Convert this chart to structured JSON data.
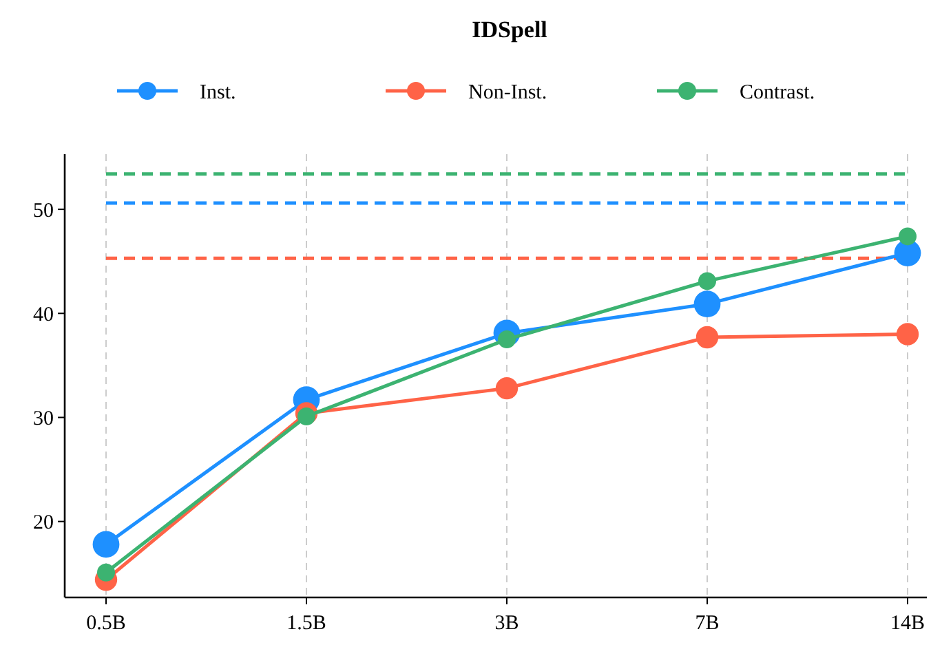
{
  "chart_data": {
    "type": "line",
    "title": "IDSpell",
    "categories": [
      "0.5B",
      "1.5B",
      "3B",
      "7B",
      "14B"
    ],
    "series": [
      {
        "name": "Inst.",
        "color": "#1e90ff",
        "values": [
          17.8,
          31.7,
          38.1,
          40.9,
          45.8
        ]
      },
      {
        "name": "Non-Inst.",
        "color": "#ff6347",
        "values": [
          14.4,
          30.4,
          32.8,
          37.7,
          38.0
        ]
      },
      {
        "name": "Contrast.",
        "color": "#3cb371",
        "values": [
          15.1,
          30.1,
          37.5,
          43.1,
          47.4
        ]
      }
    ],
    "ref_lines": [
      {
        "axis": "y",
        "value": 50.6,
        "color": "#1e90ff",
        "line_style": "dashed"
      },
      {
        "axis": "y",
        "value": 45.3,
        "color": "#ff6347",
        "line_style": "dashed"
      },
      {
        "axis": "y",
        "value": 53.4,
        "color": "#3cb371",
        "line_style": "dashed"
      }
    ],
    "ylim": [
      12.7,
      55.3
    ],
    "yticks": [
      20,
      30,
      40,
      50
    ],
    "grid": "x",
    "legend": "top",
    "marker": "circle",
    "line_style": "solid"
  }
}
